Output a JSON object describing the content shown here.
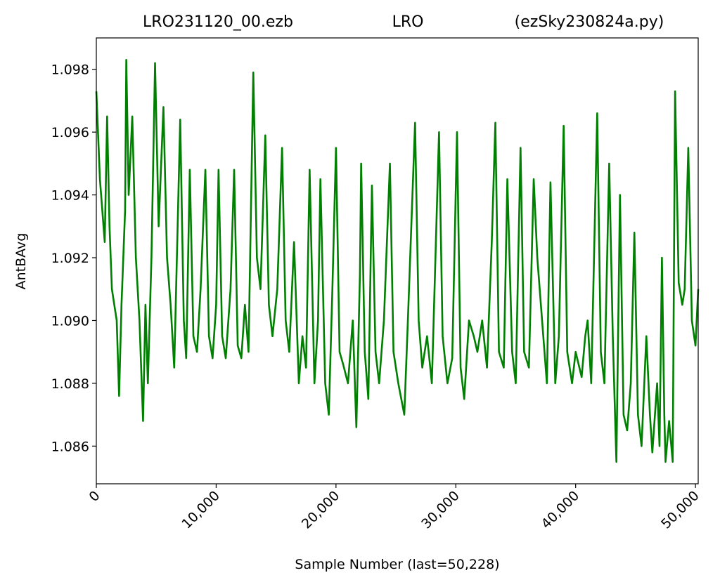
{
  "chart_data": {
    "type": "line",
    "title": [
      "LRO231120_00.ezb",
      "LRO",
      "(ezSky230824a.py)"
    ],
    "xlabel": "Sample Number (last=50,228)",
    "ylabel": "AntBAvg",
    "color": "#008000",
    "xlim": [
      0,
      50228
    ],
    "ylim": [
      1.0848,
      1.099
    ],
    "xticks": [
      0,
      {
        "value": 10000,
        "label": "10,000"
      },
      {
        "value": 20000,
        "label": "20,000"
      },
      {
        "value": 30000,
        "label": "30,000"
      },
      {
        "value": 40000,
        "label": "40,000"
      },
      {
        "value": 50000,
        "label": "50,000"
      }
    ],
    "yticks": [
      1.086,
      1.088,
      {
        "value": 1.09,
        "label": "1.090"
      },
      1.092,
      1.094,
      1.096,
      1.098
    ],
    "x": [
      0,
      300,
      700,
      900,
      1100,
      1300,
      1700,
      1900,
      2100,
      2400,
      2500,
      2700,
      3000,
      3300,
      3600,
      3900,
      4100,
      4300,
      4600,
      4900,
      5200,
      5600,
      5900,
      6200,
      6500,
      7000,
      7300,
      7500,
      7800,
      8100,
      8400,
      8700,
      9100,
      9400,
      9700,
      10000,
      10200,
      10500,
      10800,
      11200,
      11500,
      11800,
      12100,
      12400,
      12700,
      13100,
      13400,
      13700,
      14100,
      14400,
      14700,
      15100,
      15500,
      15800,
      16100,
      16500,
      16900,
      17200,
      17500,
      17800,
      18200,
      18500,
      18700,
      19100,
      19400,
      19700,
      20000,
      20300,
      20600,
      21000,
      21400,
      21700,
      22000,
      22100,
      22400,
      22700,
      23000,
      23300,
      23600,
      24000,
      24500,
      24800,
      25200,
      25700,
      26000,
      26600,
      26900,
      27200,
      27600,
      28000,
      28600,
      28900,
      29300,
      29700,
      30100,
      30400,
      30700,
      31100,
      31500,
      31800,
      32200,
      32600,
      33000,
      33300,
      33600,
      34000,
      34300,
      34700,
      35000,
      35400,
      35700,
      36100,
      36500,
      36800,
      37200,
      37600,
      37900,
      38300,
      38600,
      39000,
      39300,
      39700,
      40000,
      40500,
      40800,
      41000,
      41300,
      41800,
      42100,
      42400,
      42800,
      43100,
      43400,
      43700,
      44000,
      44300,
      44600,
      44900,
      45200,
      45500,
      45900,
      46200,
      46400,
      46800,
      47000,
      47200,
      47400,
      47500,
      47800,
      48100,
      48300,
      48600,
      48900,
      49100,
      49400,
      49700,
      50000,
      50228
    ],
    "values": [
      1.0973,
      1.0945,
      1.0925,
      1.0965,
      1.093,
      1.091,
      1.09,
      1.0876,
      1.0905,
      1.0935,
      1.0983,
      1.094,
      1.0965,
      1.092,
      1.09,
      1.0868,
      1.0905,
      1.088,
      1.092,
      1.0982,
      1.093,
      1.0968,
      1.092,
      1.0905,
      1.0885,
      1.0964,
      1.09,
      1.0888,
      1.0948,
      1.0895,
      1.089,
      1.091,
      1.0948,
      1.0895,
      1.0888,
      1.0905,
      1.0948,
      1.0895,
      1.0888,
      1.091,
      1.0948,
      1.0892,
      1.0888,
      1.0905,
      1.089,
      1.0979,
      1.092,
      1.091,
      1.0959,
      1.0905,
      1.0895,
      1.091,
      1.0955,
      1.09,
      1.089,
      1.0925,
      1.088,
      1.0895,
      1.0885,
      1.0948,
      1.088,
      1.09,
      1.0945,
      1.088,
      1.087,
      1.091,
      1.0955,
      1.089,
      1.0886,
      1.088,
      1.09,
      1.0866,
      1.0915,
      1.095,
      1.089,
      1.0875,
      1.0943,
      1.089,
      1.088,
      1.09,
      1.095,
      1.089,
      1.088,
      1.087,
      1.09,
      1.0963,
      1.09,
      1.0885,
      1.0895,
      1.088,
      1.096,
      1.0895,
      1.088,
      1.0888,
      1.096,
      1.0885,
      1.0875,
      1.09,
      1.0895,
      1.089,
      1.09,
      1.0885,
      1.0925,
      1.0963,
      1.089,
      1.0885,
      1.0945,
      1.089,
      1.088,
      1.0955,
      1.089,
      1.0885,
      1.0945,
      1.092,
      1.09,
      1.088,
      1.0944,
      1.088,
      1.0895,
      1.0962,
      1.089,
      1.088,
      1.089,
      1.0882,
      1.0895,
      1.09,
      1.088,
      1.0966,
      1.089,
      1.088,
      1.095,
      1.0895,
      1.0855,
      1.094,
      1.087,
      1.0865,
      1.088,
      1.0928,
      1.087,
      1.086,
      1.0895,
      1.087,
      1.0858,
      1.088,
      1.086,
      1.092,
      1.087,
      1.0855,
      1.0868,
      1.0855,
      1.0973,
      1.0912,
      1.0905,
      1.091,
      1.0955,
      1.09,
      1.0892,
      1.091
    ]
  }
}
